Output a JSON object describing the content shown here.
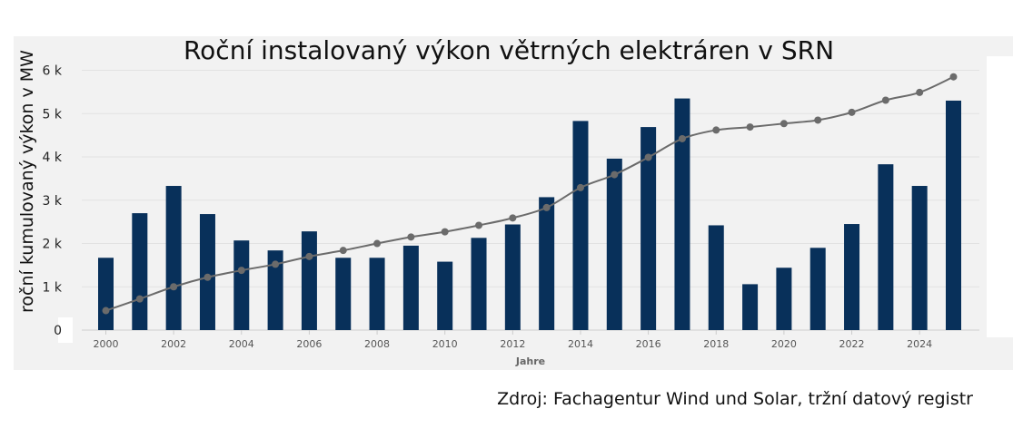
{
  "chart_data": {
    "type": "bar",
    "title": "Roční instalovaný výkon větrných elektráren v SRN",
    "ylabel": "roční kumulovaný výkon v MW",
    "xlabel": "Jahre",
    "source": "Zdroj: Fachagentur Wind und Solar, tržní datový registr",
    "ylim": [
      0,
      6200
    ],
    "y_ticks": [
      0,
      1000,
      2000,
      3000,
      4000,
      5000,
      6000
    ],
    "y_tick_labels": [
      "0",
      "1 k",
      "2 k",
      "3 k",
      "4 k",
      "5 k",
      "6 k"
    ],
    "x_tick_labels": [
      "2000",
      "2002",
      "2004",
      "2006",
      "2008",
      "2010",
      "2012",
      "2014",
      "2016",
      "2018",
      "2020",
      "2022",
      "2024"
    ],
    "categories": [
      "2000",
      "2001",
      "2002",
      "2003",
      "2004",
      "2005",
      "2006",
      "2007",
      "2008",
      "2009",
      "2010",
      "2011",
      "2012",
      "2013",
      "2014",
      "2015",
      "2016",
      "2017",
      "2018",
      "2019",
      "2020",
      "2021",
      "2022",
      "2023",
      "2024",
      "2025"
    ],
    "series": [
      {
        "kind": "bar",
        "color": "#08305a",
        "values": [
          1670,
          2700,
          3330,
          2680,
          2070,
          1840,
          2280,
          1670,
          1670,
          1950,
          1580,
          2130,
          2440,
          3070,
          4830,
          3960,
          4690,
          5350,
          2420,
          1060,
          1440,
          1900,
          2450,
          3830,
          3330,
          5300
        ]
      },
      {
        "kind": "line",
        "color": "#6b6b6b",
        "values": [
          450,
          720,
          1000,
          1220,
          1380,
          1520,
          1700,
          1840,
          2000,
          2150,
          2270,
          2420,
          2590,
          2830,
          3290,
          3590,
          3990,
          4420,
          4620,
          4690,
          4770,
          4850,
          5030,
          5310,
          5490,
          5850
        ]
      }
    ],
    "grid": true,
    "legend": "none"
  }
}
